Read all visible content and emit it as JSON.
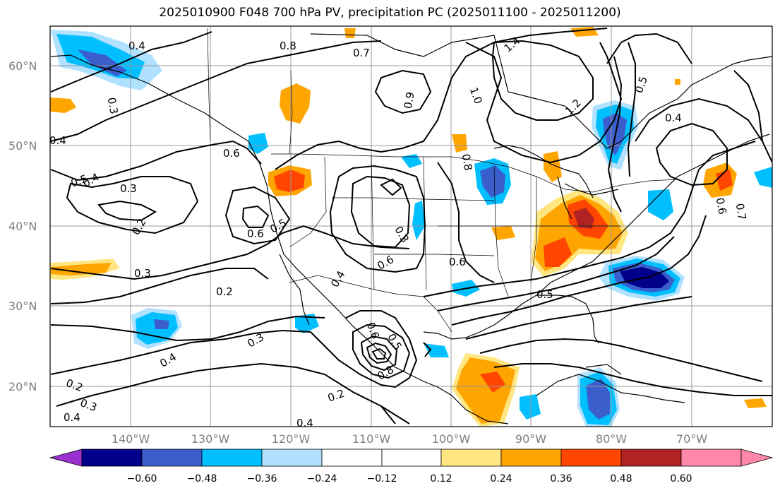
{
  "title": "2025010900 F048 700 hPa PV, precipitation PC (2025011100 - 2025011200)",
  "map": {
    "lon_range": [
      -153,
      -63
    ],
    "lat_range": [
      15,
      65
    ],
    "lat_labels": [
      "20°N",
      "30°N",
      "40°N",
      "50°N",
      "60°N"
    ],
    "lon_labels": [
      "140°W",
      "130°W",
      "120°W",
      "110°W",
      "100°W",
      "90°W",
      "80°W",
      "70°W"
    ],
    "contour_labels": [
      "0.4",
      "0.8",
      "0.7",
      "1.4",
      "0.3",
      "0.4",
      "1.0",
      "0.9",
      "1.2",
      "0.5",
      "0.4",
      "0.6",
      "0.4",
      "0.8",
      "0.5",
      "0.3",
      "0.2",
      "0.6",
      "0.5",
      "0.3",
      "0.6",
      "0.6",
      "0.5",
      "0.3",
      "0.2",
      "0.3",
      "0.4",
      "0.6",
      "0.5",
      "0.8",
      "0.2",
      "0.2",
      "0.3",
      "0.4",
      "0.4",
      "0.4",
      "0.7",
      "0.6"
    ]
  },
  "colorbar": {
    "ticks": [
      "−0.60",
      "−0.48",
      "−0.36",
      "−0.24",
      "−0.12",
      "0.12",
      "0.24",
      "0.36",
      "0.48",
      "0.60"
    ],
    "colors": [
      "#9b30d0",
      "#00008b",
      "#3a5fcd",
      "#00bfff",
      "#b0e2ff",
      "#ffffff",
      "#ffe680",
      "#ffa500",
      "#ff4500",
      "#b22222",
      "#ff88aa"
    ]
  }
}
